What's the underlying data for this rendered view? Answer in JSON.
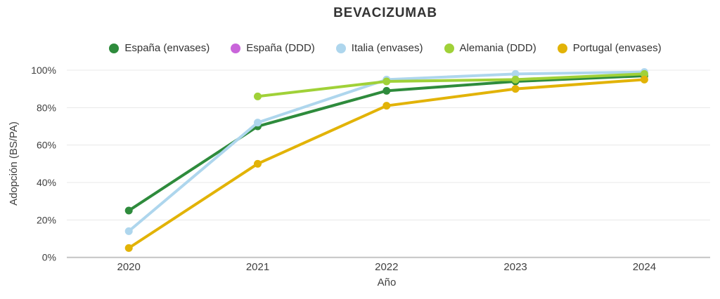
{
  "chart_data": {
    "type": "line",
    "title": "BEVACIZUMAB",
    "xlabel": "Año",
    "ylabel": "Adopción (BS/PA)",
    "categories": [
      "2020",
      "2021",
      "2022",
      "2023",
      "2024"
    ],
    "series": [
      {
        "name": "España (envases)",
        "color": "#2e8b3c",
        "values": [
          25,
          70,
          89,
          94,
          97
        ]
      },
      {
        "name": "España (DDD)",
        "color": "#c965da",
        "values": [
          null,
          null,
          null,
          null,
          null
        ]
      },
      {
        "name": "Italia (envases)",
        "color": "#aed6ed",
        "values": [
          14,
          72,
          95,
          98,
          99
        ]
      },
      {
        "name": "Alemania (DDD)",
        "color": "#a0d138",
        "values": [
          null,
          86,
          94,
          95,
          98
        ]
      },
      {
        "name": "Portugal (envases)",
        "color": "#e2b307",
        "values": [
          5,
          50,
          81,
          90,
          95
        ]
      }
    ],
    "ylim": [
      0,
      100
    ],
    "yticks": [
      0,
      20,
      40,
      60,
      80,
      100
    ],
    "ytick_suffix": "%",
    "grid": true,
    "legend_position": "top"
  }
}
